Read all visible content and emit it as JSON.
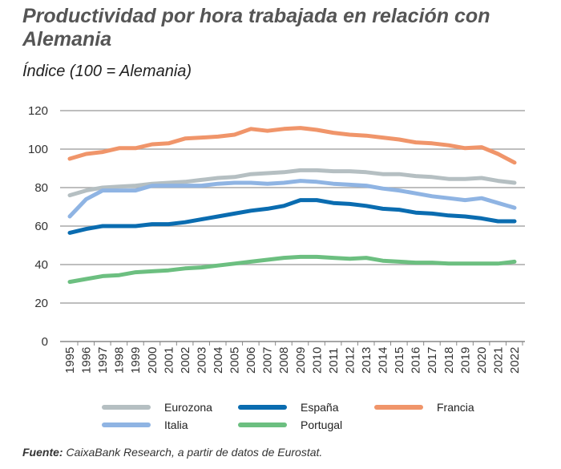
{
  "chart_data": {
    "type": "line",
    "title": "Productividad por hora trabajada en relación con Alemania",
    "subtitle": "Índice (100 = Alemania)",
    "xlabel": "",
    "ylabel": "",
    "ylim": [
      0,
      120
    ],
    "yticks": [
      0,
      20,
      40,
      60,
      80,
      100,
      120
    ],
    "grid": true,
    "legend_position": "bottom",
    "x": [
      "1995",
      "1996",
      "1997",
      "1998",
      "1999",
      "2000",
      "2001",
      "2002",
      "2003",
      "2004",
      "2005",
      "2006",
      "2007",
      "2008",
      "2009",
      "2010",
      "2011",
      "2012",
      "2013",
      "2014",
      "2015",
      "2016",
      "2017",
      "2018",
      "2019",
      "2020",
      "2021",
      "2022"
    ],
    "series": [
      {
        "name": "Eurozona",
        "color": "#b5bfc2",
        "values": [
          76,
          78.5,
          80,
          80.5,
          81,
          82,
          82.5,
          83,
          84,
          85,
          85.5,
          87,
          87.5,
          88,
          89,
          89,
          88.5,
          88.5,
          88,
          87,
          87,
          86,
          85.5,
          84.5,
          84.5,
          85,
          83.5,
          82.5
        ]
      },
      {
        "name": "España",
        "color": "#0a6cb0",
        "values": [
          56.5,
          58.5,
          60,
          60,
          60,
          61,
          61,
          62,
          63.5,
          65,
          66.5,
          68,
          69,
          70.5,
          73.5,
          73.5,
          72,
          71.5,
          70.5,
          69,
          68.5,
          67,
          66.5,
          65.5,
          65,
          64,
          62.5,
          62.5
        ]
      },
      {
        "name": "Francia",
        "color": "#f0956a",
        "values": [
          95,
          97.5,
          98.5,
          100.5,
          100.5,
          102.5,
          103,
          105.5,
          106,
          106.5,
          107.5,
          110.5,
          109.5,
          110.5,
          111,
          110,
          108.5,
          107.5,
          107,
          106,
          105,
          103.5,
          103,
          102,
          100.5,
          101,
          97.5,
          93
        ]
      },
      {
        "name": "Italia",
        "color": "#8fb4e3",
        "values": [
          65,
          74,
          78.5,
          78.5,
          78.5,
          81,
          81,
          81,
          81,
          82,
          82.5,
          82.5,
          82,
          82.5,
          83.5,
          83,
          82,
          81.5,
          81,
          79.5,
          78.5,
          77,
          75.5,
          74.5,
          73.5,
          74.5,
          72,
          69.5
        ]
      },
      {
        "name": "Portugal",
        "color": "#6cbf80",
        "values": [
          31,
          32.5,
          34,
          34.5,
          36,
          36.5,
          37,
          38,
          38.5,
          39.5,
          40.5,
          41.5,
          42.5,
          43.5,
          44,
          44,
          43.5,
          43,
          43.5,
          42,
          41.5,
          41,
          41,
          40.5,
          40.5,
          40.5,
          40.5,
          41.5
        ]
      }
    ]
  },
  "source": {
    "label": "Fuente:",
    "text": " CaixaBank Research, a partir de datos de Eurostat."
  }
}
